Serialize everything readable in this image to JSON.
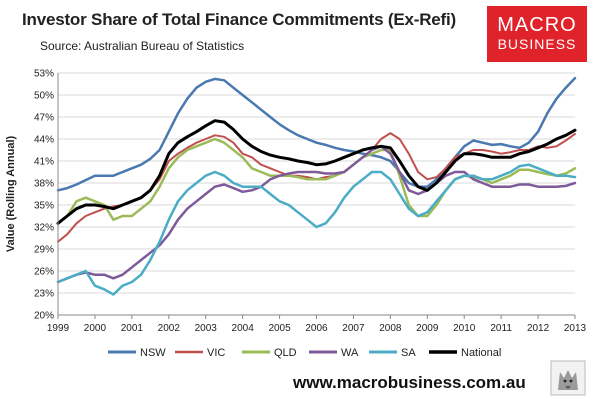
{
  "header": {
    "title": "Investor Share of Total Finance Commitments (Ex-Refi)",
    "source": "Source: Australian Bureau of Statistics"
  },
  "logo": {
    "line1": "MACRO",
    "line2": "BUSINESS",
    "color": "#e0232b"
  },
  "footer": {
    "website": "www.macrobusiness.com.au"
  },
  "chart_data": {
    "type": "line",
    "title": "Investor Share of Total Finance Commitments (Ex-Refi)",
    "ylabel": "Value (Rolling Annual)",
    "xlabel": "",
    "xlim": [
      1999,
      2013
    ],
    "ylim": [
      20,
      53
    ],
    "yticks": [
      "20%",
      "23%",
      "26%",
      "29%",
      "32%",
      "35%",
      "38%",
      "41%",
      "44%",
      "47%",
      "50%",
      "53%"
    ],
    "xticks": [
      "1999",
      "2000",
      "2001",
      "2002",
      "2003",
      "2004",
      "2005",
      "2006",
      "2007",
      "2008",
      "2009",
      "2010",
      "2011",
      "2012",
      "2013"
    ],
    "grid": "horizontal",
    "legend": "bottom",
    "series": [
      {
        "name": "NSW",
        "color": "#4a78b0",
        "width": 2.5,
        "x": [
          1999,
          1999.25,
          1999.5,
          1999.75,
          2000,
          2000.25,
          2000.5,
          2000.75,
          2001,
          2001.25,
          2001.5,
          2001.75,
          2002,
          2002.25,
          2002.5,
          2002.75,
          2003,
          2003.25,
          2003.5,
          2003.75,
          2004,
          2004.25,
          2004.5,
          2004.75,
          2005,
          2005.25,
          2005.5,
          2005.75,
          2006,
          2006.25,
          2006.5,
          2006.75,
          2007,
          2007.25,
          2007.5,
          2007.75,
          2008,
          2008.25,
          2008.5,
          2008.75,
          2009,
          2009.25,
          2009.5,
          2009.75,
          2010,
          2010.25,
          2010.5,
          2010.75,
          2011,
          2011.25,
          2011.5,
          2011.75,
          2012,
          2012.25,
          2012.5,
          2012.75,
          2013
        ],
        "y": [
          37.0,
          37.3,
          37.8,
          38.4,
          39.0,
          39.0,
          39.0,
          39.5,
          40.0,
          40.5,
          41.3,
          42.5,
          45.0,
          47.5,
          49.5,
          51.0,
          51.8,
          52.2,
          52.0,
          51.0,
          50.0,
          49.0,
          48.0,
          47.0,
          46.0,
          45.2,
          44.5,
          44.0,
          43.5,
          43.2,
          42.8,
          42.5,
          42.3,
          42.0,
          41.8,
          41.5,
          41.0,
          39.5,
          38.0,
          37.5,
          37.5,
          38.5,
          40.0,
          41.5,
          43.0,
          43.8,
          43.5,
          43.2,
          43.3,
          43.0,
          42.8,
          43.5,
          45.0,
          47.5,
          49.5,
          51.0,
          52.3
        ]
      },
      {
        "name": "VIC",
        "color": "#c0504d",
        "width": 2,
        "x": [
          1999,
          1999.25,
          1999.5,
          1999.75,
          2000,
          2000.25,
          2000.5,
          2000.75,
          2001,
          2001.25,
          2001.5,
          2001.75,
          2002,
          2002.25,
          2002.5,
          2002.75,
          2003,
          2003.25,
          2003.5,
          2003.75,
          2004,
          2004.25,
          2004.5,
          2004.75,
          2005,
          2005.25,
          2005.5,
          2005.75,
          2006,
          2006.25,
          2006.5,
          2006.75,
          2007,
          2007.25,
          2007.5,
          2007.75,
          2008,
          2008.25,
          2008.5,
          2008.75,
          2009,
          2009.25,
          2009.5,
          2009.75,
          2010,
          2010.25,
          2010.5,
          2010.75,
          2011,
          2011.25,
          2011.5,
          2011.75,
          2012,
          2012.25,
          2012.5,
          2012.75,
          2013
        ],
        "y": [
          30.0,
          31.0,
          32.5,
          33.5,
          34.0,
          34.5,
          34.8,
          35.0,
          35.5,
          36.0,
          37.0,
          38.5,
          41.0,
          42.0,
          42.8,
          43.5,
          44.0,
          44.5,
          44.3,
          43.5,
          42.0,
          41.5,
          40.5,
          40.0,
          39.5,
          39.0,
          39.0,
          38.8,
          38.5,
          38.8,
          39.0,
          39.5,
          40.5,
          41.5,
          42.5,
          44.0,
          44.8,
          44.0,
          42.0,
          39.5,
          38.5,
          38.8,
          40.0,
          41.5,
          42.0,
          42.5,
          42.5,
          42.3,
          42.0,
          42.2,
          42.5,
          42.5,
          43.0,
          42.8,
          43.0,
          43.8,
          44.7
        ]
      },
      {
        "name": "QLD",
        "color": "#9bbb59",
        "width": 2.5,
        "x": [
          1999,
          1999.25,
          1999.5,
          1999.75,
          2000,
          2000.25,
          2000.5,
          2000.75,
          2001,
          2001.25,
          2001.5,
          2001.75,
          2002,
          2002.25,
          2002.5,
          2002.75,
          2003,
          2003.25,
          2003.5,
          2003.75,
          2004,
          2004.25,
          2004.5,
          2004.75,
          2005,
          2005.25,
          2005.5,
          2005.75,
          2006,
          2006.25,
          2006.5,
          2006.75,
          2007,
          2007.25,
          2007.5,
          2007.75,
          2008,
          2008.25,
          2008.5,
          2008.75,
          2009,
          2009.25,
          2009.5,
          2009.75,
          2010,
          2010.25,
          2010.5,
          2010.75,
          2011,
          2011.25,
          2011.5,
          2011.75,
          2012,
          2012.25,
          2012.5,
          2012.75,
          2013
        ],
        "y": [
          32.5,
          33.5,
          35.5,
          36.0,
          35.5,
          35.0,
          33.0,
          33.5,
          33.5,
          34.5,
          35.5,
          37.5,
          40.0,
          41.5,
          42.5,
          43.0,
          43.5,
          44.0,
          43.5,
          42.5,
          41.5,
          40.0,
          39.5,
          39.0,
          39.0,
          39.0,
          38.8,
          38.5,
          38.5,
          38.5,
          39.0,
          39.5,
          40.5,
          41.5,
          42.0,
          42.5,
          42.5,
          39.0,
          35.0,
          33.5,
          33.5,
          35.0,
          37.0,
          38.5,
          39.0,
          38.8,
          38.5,
          38.0,
          38.5,
          39.0,
          39.8,
          39.8,
          39.5,
          39.2,
          39.0,
          39.3,
          40.0
        ]
      },
      {
        "name": "WA",
        "color": "#7e5a9b",
        "width": 2.5,
        "x": [
          1999,
          1999.25,
          1999.5,
          1999.75,
          2000,
          2000.25,
          2000.5,
          2000.75,
          2001,
          2001.25,
          2001.5,
          2001.75,
          2002,
          2002.25,
          2002.5,
          2002.75,
          2003,
          2003.25,
          2003.5,
          2003.75,
          2004,
          2004.25,
          2004.5,
          2004.75,
          2005,
          2005.25,
          2005.5,
          2005.75,
          2006,
          2006.25,
          2006.5,
          2006.75,
          2007,
          2007.25,
          2007.5,
          2007.75,
          2008,
          2008.25,
          2008.5,
          2008.75,
          2009,
          2009.25,
          2009.5,
          2009.75,
          2010,
          2010.25,
          2010.5,
          2010.75,
          2011,
          2011.25,
          2011.5,
          2011.75,
          2012,
          2012.25,
          2012.5,
          2012.75,
          2013
        ],
        "y": [
          24.5,
          25.0,
          25.5,
          25.8,
          25.5,
          25.5,
          25.0,
          25.5,
          26.5,
          27.5,
          28.5,
          29.5,
          31.0,
          33.0,
          34.5,
          35.5,
          36.5,
          37.5,
          37.8,
          37.3,
          36.8,
          37.0,
          37.5,
          38.5,
          39.0,
          39.3,
          39.5,
          39.5,
          39.5,
          39.3,
          39.3,
          39.5,
          40.5,
          41.5,
          42.5,
          43.0,
          42.0,
          39.5,
          37.0,
          36.5,
          37.0,
          38.0,
          39.0,
          39.5,
          39.5,
          38.5,
          38.0,
          37.5,
          37.5,
          37.5,
          37.8,
          37.8,
          37.5,
          37.5,
          37.5,
          37.6,
          38.0
        ]
      },
      {
        "name": "SA",
        "color": "#4bacc6",
        "width": 2.5,
        "x": [
          1999,
          1999.25,
          1999.5,
          1999.75,
          2000,
          2000.25,
          2000.5,
          2000.75,
          2001,
          2001.25,
          2001.5,
          2001.75,
          2002,
          2002.25,
          2002.5,
          2002.75,
          2003,
          2003.25,
          2003.5,
          2003.75,
          2004,
          2004.25,
          2004.5,
          2004.75,
          2005,
          2005.25,
          2005.5,
          2005.75,
          2006,
          2006.25,
          2006.5,
          2006.75,
          2007,
          2007.25,
          2007.5,
          2007.75,
          2008,
          2008.25,
          2008.5,
          2008.75,
          2009,
          2009.25,
          2009.5,
          2009.75,
          2010,
          2010.25,
          2010.5,
          2010.75,
          2011,
          2011.25,
          2011.5,
          2011.75,
          2012,
          2012.25,
          2012.5,
          2012.75,
          2013
        ],
        "y": [
          24.5,
          25.0,
          25.5,
          26.0,
          24.0,
          23.5,
          22.8,
          24.0,
          24.5,
          25.5,
          27.5,
          30.0,
          33.0,
          35.5,
          37.0,
          38.0,
          39.0,
          39.5,
          39.0,
          38.0,
          37.5,
          37.5,
          37.5,
          36.5,
          35.5,
          35.0,
          34.0,
          33.0,
          32.0,
          32.5,
          34.0,
          36.0,
          37.5,
          38.5,
          39.5,
          39.5,
          38.5,
          36.5,
          34.5,
          33.5,
          34.0,
          35.5,
          37.0,
          38.5,
          39.0,
          39.0,
          38.5,
          38.5,
          39.0,
          39.5,
          40.3,
          40.5,
          40.0,
          39.5,
          39.0,
          39.0,
          38.8
        ]
      },
      {
        "name": "National",
        "color": "#000000",
        "width": 3,
        "x": [
          1999,
          1999.25,
          1999.5,
          1999.75,
          2000,
          2000.25,
          2000.5,
          2000.75,
          2001,
          2001.25,
          2001.5,
          2001.75,
          2002,
          2002.25,
          2002.5,
          2002.75,
          2003,
          2003.25,
          2003.5,
          2003.75,
          2004,
          2004.25,
          2004.5,
          2004.75,
          2005,
          2005.25,
          2005.5,
          2005.75,
          2006,
          2006.25,
          2006.5,
          2006.75,
          2007,
          2007.25,
          2007.5,
          2007.75,
          2008,
          2008.25,
          2008.5,
          2008.75,
          2009,
          2009.25,
          2009.5,
          2009.75,
          2010,
          2010.25,
          2010.5,
          2010.75,
          2011,
          2011.25,
          2011.5,
          2011.75,
          2012,
          2012.25,
          2012.5,
          2012.75,
          2013
        ],
        "y": [
          32.5,
          33.5,
          34.5,
          35.0,
          35.0,
          34.8,
          34.5,
          35.0,
          35.5,
          36.0,
          37.0,
          39.0,
          42.0,
          43.5,
          44.3,
          45.0,
          45.8,
          46.5,
          46.3,
          45.3,
          44.0,
          43.0,
          42.3,
          41.8,
          41.5,
          41.3,
          41.0,
          40.8,
          40.5,
          40.6,
          41.0,
          41.5,
          42.0,
          42.5,
          42.8,
          43.0,
          42.8,
          41.0,
          39.0,
          37.5,
          37.0,
          38.0,
          39.5,
          41.0,
          42.0,
          42.0,
          41.8,
          41.5,
          41.5,
          41.5,
          42.0,
          42.3,
          42.8,
          43.3,
          44.0,
          44.5,
          45.2
        ]
      }
    ]
  }
}
